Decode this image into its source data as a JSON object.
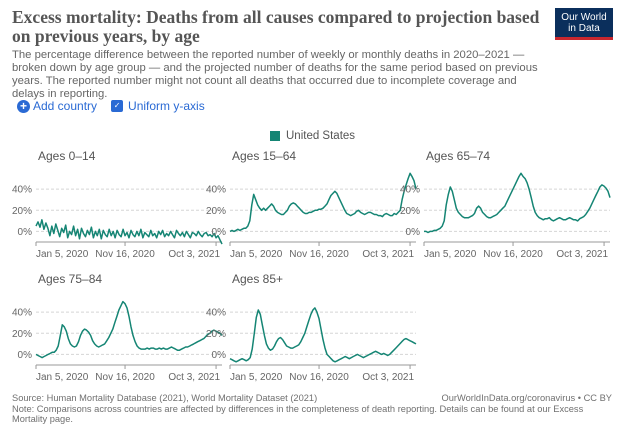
{
  "header": {
    "title": "Excess mortality: Deaths from all causes compared to projection based on previous years, by age",
    "subtitle": "The percentage difference between the reported number of weekly or monthly deaths in 2020–2021 — broken down by age group — and the projected number of deaths for the same period based on previous years. The reported number might not count all deaths that occurred due to incomplete coverage and delays in reporting."
  },
  "logo": {
    "line1": "Our World",
    "line2": "in Data"
  },
  "controls": {
    "add_country": "Add country",
    "uniform_y_axis": "Uniform y-axis"
  },
  "legend": {
    "label": "United States",
    "color": "#158574"
  },
  "chart_data": {
    "type": "line",
    "color": "#158574",
    "ylim": [
      -10,
      60
    ],
    "yticks": [
      "0%",
      "20%",
      "40%"
    ],
    "yticks_values": [
      0,
      20,
      40
    ],
    "xticks": [
      "Jan 5, 2020",
      "Nov 16, 2020",
      "Oct 3, 2021"
    ],
    "xticks_weeks": [
      0,
      45,
      91
    ],
    "x_range_weeks": [
      0,
      94
    ],
    "grid": "horizontal dashed",
    "panels": [
      {
        "name": "Ages 0–14",
        "values": [
          5,
          9,
          4,
          11,
          2,
          8,
          3,
          -4,
          5,
          -2,
          7,
          1,
          -5,
          3,
          -1,
          6,
          -6,
          0,
          -3,
          5,
          -4,
          2,
          -7,
          3,
          -2,
          -5,
          1,
          -3,
          4,
          -6,
          0,
          -4,
          2,
          -7,
          1,
          -3,
          -5,
          2,
          -4,
          0,
          -6,
          1,
          -3,
          -5,
          2,
          -4,
          -1,
          -6,
          1,
          -3,
          -5,
          0,
          -4,
          2,
          -6,
          -1,
          -3,
          -5,
          1,
          -4,
          -2,
          -6,
          0,
          -3,
          1,
          -5,
          -2,
          -4,
          0,
          -3,
          -6,
          1,
          -2,
          -4,
          -1,
          -5,
          0,
          -3,
          -6,
          -1,
          -2,
          -4,
          0,
          -3,
          -5,
          -2,
          -1,
          -4,
          -3,
          -5,
          -2,
          -6,
          -4,
          -8,
          -12
        ]
      },
      {
        "name": "Ages 15–64",
        "values": [
          0,
          1,
          0,
          1,
          2,
          1,
          2,
          3,
          3,
          5,
          10,
          25,
          35,
          30,
          25,
          22,
          20,
          22,
          20,
          22,
          24,
          26,
          24,
          20,
          18,
          17,
          16,
          16,
          18,
          20,
          24,
          26,
          27,
          26,
          24,
          22,
          20,
          18,
          17,
          17,
          18,
          18,
          19,
          20,
          20,
          21,
          21,
          22,
          24,
          26,
          30,
          34,
          36,
          38,
          36,
          32,
          28,
          24,
          20,
          17,
          16,
          15,
          16,
          17,
          19,
          20,
          18,
          17,
          16,
          17,
          18,
          18,
          17,
          16,
          16,
          15,
          15,
          14,
          16,
          17,
          16,
          15,
          15,
          17,
          16,
          18,
          20,
          30,
          38,
          44,
          50,
          55,
          52,
          48,
          40
        ]
      },
      {
        "name": "Ages 65–74",
        "values": [
          0,
          0,
          -1,
          0,
          0,
          1,
          1,
          2,
          3,
          5,
          10,
          25,
          35,
          42,
          38,
          30,
          22,
          18,
          16,
          14,
          13,
          13,
          13,
          14,
          15,
          17,
          22,
          24,
          22,
          18,
          16,
          14,
          13,
          13,
          14,
          15,
          16,
          18,
          20,
          22,
          24,
          28,
          32,
          36,
          40,
          44,
          48,
          52,
          55,
          52,
          50,
          46,
          40,
          32,
          24,
          18,
          15,
          13,
          12,
          11,
          12,
          12,
          13,
          11,
          10,
          11,
          12,
          13,
          12,
          11,
          11,
          12,
          13,
          12,
          11,
          11,
          10,
          12,
          13,
          14,
          16,
          19,
          22,
          26,
          30,
          34,
          38,
          42,
          44,
          43,
          41,
          38,
          32
        ]
      },
      {
        "name": "Ages 75–84",
        "values": [
          0,
          -1,
          -2,
          -3,
          -2,
          -1,
          0,
          1,
          2,
          2,
          4,
          8,
          18,
          28,
          26,
          22,
          15,
          10,
          8,
          7,
          8,
          12,
          18,
          22,
          24,
          23,
          21,
          18,
          13,
          10,
          8,
          7,
          8,
          9,
          10,
          13,
          16,
          20,
          24,
          30,
          36,
          42,
          46,
          50,
          48,
          44,
          36,
          26,
          18,
          12,
          8,
          6,
          5,
          5,
          5,
          6,
          5,
          6,
          6,
          5,
          5,
          6,
          5,
          6,
          5,
          5,
          6,
          7,
          6,
          5,
          4,
          4,
          5,
          6,
          7,
          7,
          8,
          9,
          10,
          11,
          12,
          13,
          14,
          15,
          17,
          19,
          20,
          22,
          23,
          22,
          21,
          20,
          18
        ]
      },
      {
        "name": "Ages 85+",
        "values": [
          -4,
          -5,
          -6,
          -7,
          -6,
          -5,
          -4,
          -5,
          -6,
          -5,
          -3,
          5,
          20,
          35,
          42,
          38,
          28,
          18,
          10,
          6,
          4,
          5,
          8,
          12,
          15,
          16,
          14,
          11,
          8,
          7,
          6,
          6,
          7,
          8,
          9,
          12,
          16,
          20,
          26,
          32,
          38,
          42,
          44,
          40,
          34,
          24,
          14,
          6,
          0,
          -2,
          -4,
          -6,
          -7,
          -6,
          -5,
          -4,
          -3,
          -2,
          -3,
          -4,
          -3,
          -2,
          -1,
          0,
          -1,
          -2,
          -3,
          -2,
          -1,
          0,
          1,
          2,
          3,
          2,
          1,
          0,
          1,
          0,
          -1,
          0,
          2,
          4,
          6,
          8,
          10,
          12,
          14,
          15,
          14,
          13,
          12,
          11,
          10
        ]
      }
    ]
  },
  "footer": {
    "source": "Source: Human Mortality Database (2021), World Mortality Dataset (2021)",
    "url": "OurWorldInData.org/coronavirus • CC BY",
    "note": "Note: Comparisons across countries are affected by differences in the completeness of death reporting. Details can be found at our Excess Mortality page."
  }
}
